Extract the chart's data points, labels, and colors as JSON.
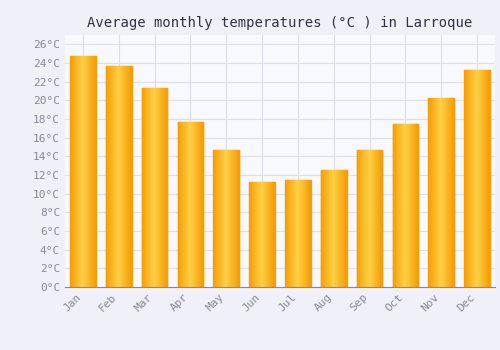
{
  "title": "Average monthly temperatures (°C ) in Larroque",
  "months": [
    "Jan",
    "Feb",
    "Mar",
    "Apr",
    "May",
    "Jun",
    "Jul",
    "Aug",
    "Sep",
    "Oct",
    "Nov",
    "Dec"
  ],
  "values": [
    24.7,
    23.7,
    21.3,
    17.7,
    14.7,
    11.3,
    11.5,
    12.5,
    14.7,
    17.5,
    20.3,
    23.2
  ],
  "bar_color_center": "#FFD050",
  "bar_color_edge": "#F5A800",
  "background_color": "#F0F0F8",
  "plot_bg_color": "#F8F8FF",
  "grid_color": "#DDDDEE",
  "ytick_labels": [
    "0°C",
    "2°C",
    "4°C",
    "6°C",
    "8°C",
    "10°C",
    "12°C",
    "14°C",
    "16°C",
    "18°C",
    "20°C",
    "22°C",
    "24°C",
    "26°C"
  ],
  "ytick_values": [
    0,
    2,
    4,
    6,
    8,
    10,
    12,
    14,
    16,
    18,
    20,
    22,
    24,
    26
  ],
  "ylim": [
    0,
    27
  ],
  "title_fontsize": 10,
  "tick_fontsize": 8,
  "tick_color": "#888899",
  "title_color": "#333344",
  "font_family": "monospace"
}
